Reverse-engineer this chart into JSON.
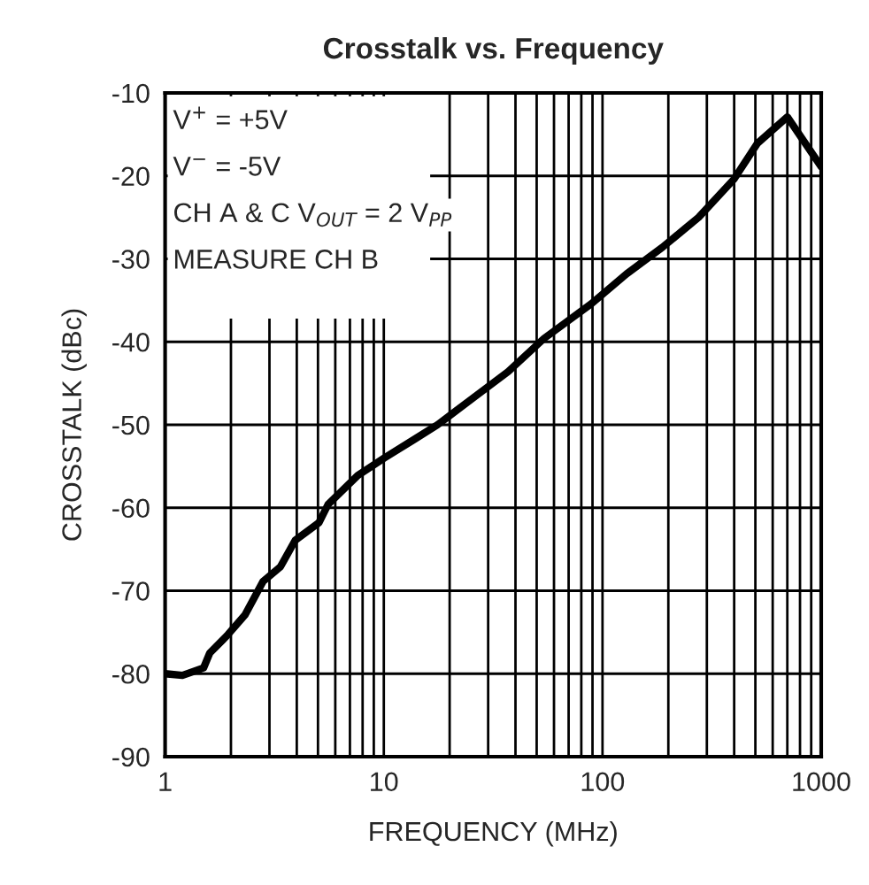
{
  "chart_data": {
    "type": "line",
    "title": "Crosstalk vs. Frequency",
    "xlabel": "FREQUENCY (MHz)",
    "ylabel": "CROSSTALK (dBc)",
    "annotations": [
      "V$^{+}$ = +5V",
      "V$^{−}$ = -5V",
      "CH A & C V$_{OUT}$ = 2 V$_{PP}$",
      "MEASURE CH B"
    ],
    "log": "x",
    "xlim": [
      1,
      1000
    ],
    "xticks": [
      1,
      10,
      100,
      1000
    ],
    "ylim": [
      -90,
      -10
    ],
    "yticks": [
      -90,
      -80,
      -70,
      -60,
      -50,
      -40,
      -30,
      -20,
      -10
    ],
    "grid": true,
    "marker": "none",
    "line_style": "solid",
    "series": [
      {
        "color": "#000000",
        "x": [
          1,
          1.2,
          1.5,
          1.6,
          1.92,
          2.32,
          2.8,
          3.37,
          3.94,
          5.05,
          5.56,
          7.6,
          10.05,
          13.7,
          17.6,
          25.5,
          37,
          54,
          89,
          129,
          188,
          275,
          399,
          510,
          700,
          1000
        ],
        "values": [
          -80,
          -80.2,
          -79.3,
          -77.5,
          -75.4,
          -72.9,
          -68.9,
          -67.1,
          -63.9,
          -61.8,
          -59.6,
          -56.1,
          -54,
          -51.8,
          -50,
          -46.8,
          -43.6,
          -39.6,
          -35.4,
          -31.8,
          -28.6,
          -25,
          -20.4,
          -16.1,
          -12.9,
          -18.9
        ]
      }
    ]
  }
}
